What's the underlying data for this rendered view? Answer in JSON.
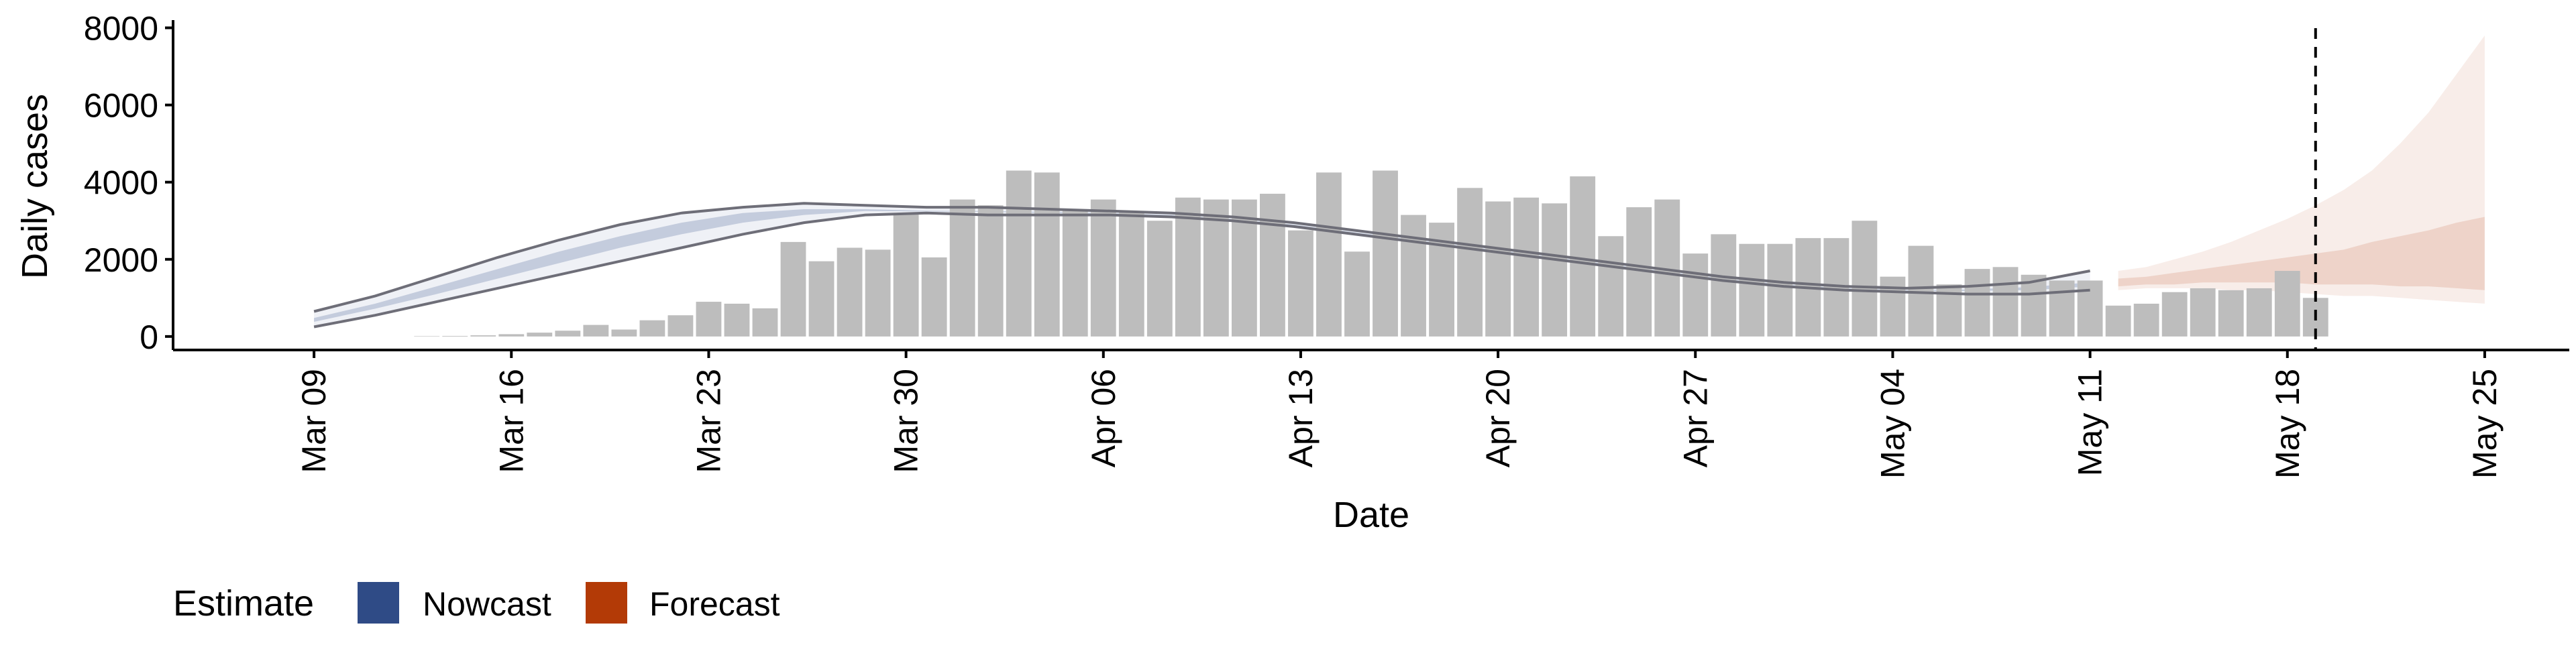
{
  "chart_data": {
    "type": "bar",
    "title": "",
    "xlabel": "Date",
    "ylabel": "Daily cases",
    "ylim": [
      -350,
      8200
    ],
    "y_ticks": [
      0,
      2000,
      4000,
      6000,
      8000
    ],
    "y_tick_labels": [
      "0",
      "2000",
      "4000",
      "6000",
      "8000"
    ],
    "x_ticks": [
      {
        "label": "Mar 09",
        "date": "2020-03-09"
      },
      {
        "label": "Mar 16",
        "date": "2020-03-16"
      },
      {
        "label": "Mar 23",
        "date": "2020-03-23"
      },
      {
        "label": "Mar 30",
        "date": "2020-03-30"
      },
      {
        "label": "Apr 06",
        "date": "2020-04-06"
      },
      {
        "label": "Apr 13",
        "date": "2020-04-13"
      },
      {
        "label": "Apr 20",
        "date": "2020-04-20"
      },
      {
        "label": "Apr 27",
        "date": "2020-04-27"
      },
      {
        "label": "May 04",
        "date": "2020-05-04"
      },
      {
        "label": "May 11",
        "date": "2020-05-11"
      },
      {
        "label": "May 18",
        "date": "2020-05-18"
      },
      {
        "label": "May 25",
        "date": "2020-05-25"
      }
    ],
    "xlim": [
      "2020-03-04",
      "2020-05-28"
    ],
    "grid": false,
    "legend": {
      "position": "bottom-left",
      "title": "Estimate",
      "entries": [
        {
          "label": "Nowcast",
          "color": "#2f4b86"
        },
        {
          "label": "Forecast",
          "color": "#b33a06"
        }
      ]
    },
    "vline_date": "2020-05-19",
    "bar_color": "#bdbdbd",
    "bars": {
      "start_date": "2020-03-13",
      "values": [
        10,
        15,
        30,
        60,
        100,
        150,
        300,
        180,
        420,
        550,
        900,
        850,
        730,
        2450,
        1950,
        2300,
        2250,
        3200,
        2050,
        3550,
        3400,
        4300,
        4250,
        3300,
        3550,
        3250,
        3000,
        3600,
        3550,
        3550,
        3700,
        2750,
        4250,
        2200,
        4300,
        3150,
        2950,
        3850,
        3500,
        3600,
        3450,
        4150,
        2600,
        3350,
        3550,
        2150,
        2650,
        2400,
        2400,
        2550,
        2550,
        3000,
        1550,
        2350,
        1350,
        1750,
        1800,
        1600,
        1450,
        1450,
        800,
        850,
        1150,
        1250,
        1200,
        1250,
        1700,
        1000
      ]
    },
    "series": [
      {
        "name": "Nowcast",
        "color": "#2f4b86",
        "x_start": "2020-03-09",
        "x_end": "2020-05-11",
        "outer_upper": [
          650,
          1050,
          1550,
          2050,
          2500,
          2900,
          3200,
          3350,
          3450,
          3400,
          3350,
          3350,
          3300,
          3250,
          3200,
          3100,
          2950,
          2750,
          2550,
          2350,
          2150,
          1950,
          1750,
          1550,
          1400,
          1300,
          1250,
          1300,
          1400,
          1700
        ],
        "outer_lower": [
          250,
          550,
          900,
          1250,
          1600,
          1950,
          2300,
          2650,
          2950,
          3150,
          3200,
          3150,
          3150,
          3150,
          3100,
          3000,
          2850,
          2650,
          2450,
          2250,
          2050,
          1850,
          1650,
          1450,
          1300,
          1200,
          1150,
          1100,
          1100,
          1200
        ],
        "inner_upper": [
          480,
          850,
          1300,
          1750,
          2200,
          2600,
          2950,
          3200,
          3300,
          3300,
          3260,
          3250,
          3230,
          3200,
          3150,
          3050,
          2900,
          2700,
          2500,
          2300,
          2100,
          1900,
          1700,
          1500,
          1350,
          1250,
          1200,
          1220,
          1280,
          1400
        ],
        "inner_lower": [
          380,
          720,
          1100,
          1500,
          1900,
          2300,
          2650,
          2950,
          3150,
          3250,
          3240,
          3230,
          3200,
          3180,
          3130,
          3040,
          2880,
          2680,
          2480,
          2280,
          2080,
          1880,
          1680,
          1480,
          1330,
          1230,
          1180,
          1180,
          1200,
          1300
        ]
      },
      {
        "name": "Forecast",
        "color": "#b33a06",
        "x_start": "2020-05-12",
        "x_end": "2020-05-25",
        "outer_upper": [
          1700,
          1800,
          2000,
          2200,
          2450,
          2750,
          3050,
          3400,
          3800,
          4300,
          5000,
          5800,
          6800,
          7800
        ],
        "outer_lower": [
          1200,
          1250,
          1250,
          1250,
          1200,
          1200,
          1150,
          1100,
          1050,
          1050,
          1000,
          950,
          900,
          850
        ],
        "inner_upper": [
          1500,
          1550,
          1650,
          1750,
          1850,
          1950,
          2050,
          2150,
          2250,
          2450,
          2600,
          2750,
          2950,
          3100
        ],
        "inner_lower": [
          1300,
          1350,
          1350,
          1400,
          1400,
          1400,
          1400,
          1350,
          1350,
          1350,
          1300,
          1300,
          1250,
          1200
        ]
      }
    ]
  }
}
